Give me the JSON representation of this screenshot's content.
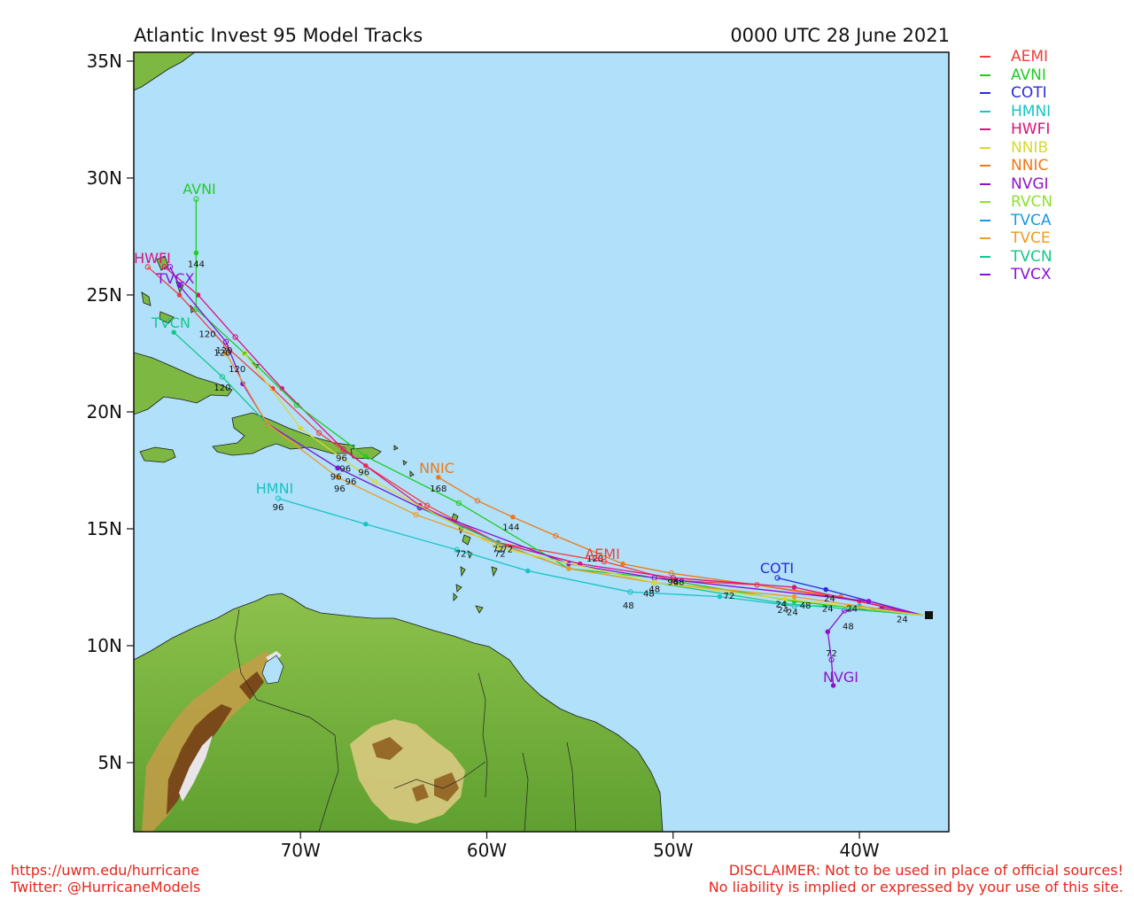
{
  "header": {
    "title": "Atlantic Invest 95 Model Tracks",
    "datetime": "0000 UTC 28 June 2021"
  },
  "axes": {
    "y_ticks": [
      "35N",
      "30N",
      "25N",
      "20N",
      "15N",
      "10N",
      "5N"
    ],
    "x_ticks": [
      "70W",
      "60W",
      "50W",
      "40W"
    ]
  },
  "legend": [
    {
      "label": "AEMI",
      "color": "#f23c3c"
    },
    {
      "label": "AVNI",
      "color": "#22cc22"
    },
    {
      "label": "COTI",
      "color": "#2a2ae0"
    },
    {
      "label": "HMNI",
      "color": "#18c4c4"
    },
    {
      "label": "HWFI",
      "color": "#e0107a"
    },
    {
      "label": "NNIB",
      "color": "#d8d834"
    },
    {
      "label": "NNIC",
      "color": "#f07818"
    },
    {
      "label": "NVGI",
      "color": "#9012c8"
    },
    {
      "label": "RVCN",
      "color": "#8ee030"
    },
    {
      "label": "TVCA",
      "color": "#1a9ae0"
    },
    {
      "label": "TVCE",
      "color": "#f09a20"
    },
    {
      "label": "TVCN",
      "color": "#14c88a"
    },
    {
      "label": "TVCX",
      "color": "#8a10d8"
    }
  ],
  "track_labels": [
    {
      "model": "AVNI",
      "text": "AVNI"
    },
    {
      "model": "HWFI",
      "text": "HWFI"
    },
    {
      "model": "TVCX",
      "text": "TVCX"
    },
    {
      "model": "TVCN",
      "text": "TVCN"
    },
    {
      "model": "NNIC",
      "text": "NNIC"
    },
    {
      "model": "HMNI",
      "text": "HMNI"
    },
    {
      "model": "AEMI",
      "text": "AEMI"
    },
    {
      "model": "COTI",
      "text": "COTI"
    },
    {
      "model": "NVGI",
      "text": "NVGI"
    }
  ],
  "tracks": {
    "HMNI": [
      [
        -36.6,
        11.3
      ],
      [
        -40,
        11.7
      ],
      [
        -43.5,
        11.7
      ],
      [
        -47.5,
        12.1
      ],
      [
        -52.3,
        12.3
      ],
      [
        -57.8,
        13.2
      ],
      [
        -61.6,
        14.1
      ],
      [
        -66.5,
        15.2
      ],
      [
        -71.2,
        16.3
      ]
    ],
    "NVGI": [
      [
        -36.6,
        11.3
      ],
      [
        -38.8,
        11.6
      ],
      [
        -40.8,
        11.5
      ],
      [
        -41.7,
        10.6
      ],
      [
        -41.5,
        9.4
      ],
      [
        -41.4,
        8.3
      ]
    ],
    "COTI": [
      [
        -36.6,
        11.3
      ],
      [
        -41.8,
        12.4
      ],
      [
        -44.4,
        12.9
      ]
    ],
    "AEMI": [
      [
        -36.6,
        11.3
      ],
      [
        -40,
        11.9
      ],
      [
        -45.5,
        12.6
      ],
      [
        -50,
        12.8
      ],
      [
        -53.7,
        13.6
      ],
      [
        -59.4,
        14.4
      ],
      [
        -63.2,
        16
      ],
      [
        -66.5,
        17.7
      ],
      [
        -69,
        19.1
      ],
      [
        -71.5,
        21
      ],
      [
        -74,
        22.8
      ],
      [
        -76.5,
        25
      ],
      [
        -78.2,
        26.2
      ]
    ],
    "NNIC": [
      [
        -36.6,
        11.3
      ],
      [
        -41,
        12.1
      ],
      [
        -50.1,
        13.1
      ],
      [
        -52.7,
        13.5
      ],
      [
        -56.3,
        14.7
      ],
      [
        -58.6,
        15.5
      ],
      [
        -60.5,
        16.2
      ],
      [
        -62.6,
        17.2
      ]
    ],
    "HWFI": [
      [
        -36.6,
        11.3
      ],
      [
        -43.5,
        12.5
      ],
      [
        -50,
        12.9
      ],
      [
        -55,
        13.5
      ],
      [
        -59.4,
        14.4
      ],
      [
        -63.6,
        16
      ],
      [
        -67.7,
        18.4
      ],
      [
        -71,
        21
      ],
      [
        -73.5,
        23.2
      ],
      [
        -75.5,
        25
      ],
      [
        -77.3,
        26.2
      ]
    ],
    "AVNI": [
      [
        -36.6,
        11.3
      ],
      [
        -43.5,
        11.9
      ],
      [
        -51,
        12.9
      ],
      [
        -55.6,
        13.3
      ],
      [
        -61.5,
        16.1
      ],
      [
        -66.5,
        18.1
      ],
      [
        -70.2,
        20.3
      ],
      [
        -73,
        22.5
      ],
      [
        -75.6,
        24.4
      ],
      [
        -75.6,
        26.8
      ],
      [
        -75.6,
        29.1
      ]
    ],
    "TVCN": [
      [
        -36.6,
        11.3
      ],
      [
        -44,
        11.8
      ],
      [
        -51,
        12.7
      ],
      [
        -55.6,
        13.3
      ],
      [
        -59.4,
        14.4
      ],
      [
        -63.6,
        15.9
      ],
      [
        -68,
        17.6
      ],
      [
        -71.8,
        19.5
      ],
      [
        -74.2,
        21.5
      ],
      [
        -76.8,
        23.4
      ]
    ],
    "TVCX": [
      [
        -36.6,
        11.3
      ],
      [
        -39.5,
        11.9
      ],
      [
        -51,
        12.9
      ],
      [
        -55.6,
        13.5
      ],
      [
        -63.6,
        15.9
      ],
      [
        -68,
        17.6
      ],
      [
        -71.8,
        19.5
      ],
      [
        -73.1,
        21.2
      ],
      [
        -74,
        23
      ],
      [
        -76.5,
        25.4
      ],
      [
        -77,
        26.2
      ]
    ],
    "TVCE": [
      [
        -36.6,
        11.3
      ],
      [
        -43.5,
        12.1
      ],
      [
        -51,
        12.7
      ],
      [
        -55.6,
        13.3
      ],
      [
        -63.8,
        15.6
      ],
      [
        -68,
        17.2
      ],
      [
        -71.8,
        19.5
      ],
      [
        -74,
        22.5
      ]
    ],
    "NNIB": [
      [
        -36.6,
        11.3
      ],
      [
        -44,
        12
      ],
      [
        -51,
        12.7
      ],
      [
        -59.4,
        14.2
      ],
      [
        -66,
        17
      ],
      [
        -70,
        19.3
      ],
      [
        -73,
        22.5
      ]
    ]
  },
  "hour_labels": [
    {
      "text": "24",
      "lon": -37.7,
      "lat": 11.0
    },
    {
      "text": "24",
      "lon": -40.4,
      "lat": 11.45
    },
    {
      "text": "24",
      "lon": -41.7,
      "lat": 11.45
    },
    {
      "text": "24",
      "lon": -44.1,
      "lat": 11.4
    },
    {
      "text": "24",
      "lon": -44.2,
      "lat": 11.65
    },
    {
      "text": "24",
      "lon": -43.6,
      "lat": 11.3
    },
    {
      "text": "24",
      "lon": -41.6,
      "lat": 11.9
    },
    {
      "text": "48",
      "lon": -42.9,
      "lat": 11.6
    },
    {
      "text": "48",
      "lon": -40.6,
      "lat": 10.7
    },
    {
      "text": "48",
      "lon": -52.4,
      "lat": 11.6
    },
    {
      "text": "48",
      "lon": -51.3,
      "lat": 12.1
    },
    {
      "text": "48",
      "lon": -51.0,
      "lat": 12.3
    },
    {
      "text": "48",
      "lon": -49.7,
      "lat": 12.6
    },
    {
      "text": "72",
      "lon": -47.0,
      "lat": 12.0
    },
    {
      "text": "72",
      "lon": -61.4,
      "lat": 13.8
    },
    {
      "text": "72",
      "lon": -59.4,
      "lat": 14.0
    },
    {
      "text": "72",
      "lon": -58.9,
      "lat": 14.0
    },
    {
      "text": "72",
      "lon": -59.3,
      "lat": 13.8
    },
    {
      "text": "72",
      "lon": -41.5,
      "lat": 9.55
    },
    {
      "text": "96",
      "lon": -50.0,
      "lat": 12.6
    },
    {
      "text": "96",
      "lon": -71.2,
      "lat": 15.8
    },
    {
      "text": "96",
      "lon": -67.9,
      "lat": 16.6
    },
    {
      "text": "96",
      "lon": -67.3,
      "lat": 16.9
    },
    {
      "text": "96",
      "lon": -66.6,
      "lat": 17.3
    },
    {
      "text": "96",
      "lon": -67.6,
      "lat": 17.45
    },
    {
      "text": "96",
      "lon": -68.1,
      "lat": 17.1
    },
    {
      "text": "96",
      "lon": -67.8,
      "lat": 17.9
    },
    {
      "text": "120",
      "lon": -54.2,
      "lat": 13.6
    },
    {
      "text": "120",
      "lon": -74.2,
      "lat": 20.9
    },
    {
      "text": "120",
      "lon": -74.2,
      "lat": 22.4
    },
    {
      "text": "120",
      "lon": -73.4,
      "lat": 21.7
    },
    {
      "text": "120",
      "lon": -74.1,
      "lat": 22.5
    },
    {
      "text": "120",
      "lon": -75.0,
      "lat": 23.2
    },
    {
      "text": "144",
      "lon": -58.7,
      "lat": 14.95
    },
    {
      "text": "144",
      "lon": -75.6,
      "lat": 26.2
    },
    {
      "text": "168",
      "lon": -62.6,
      "lat": 16.6
    }
  ],
  "credits": {
    "left_line1": "https://uwm.edu/hurricane",
    "left_line2": "Twitter: @HurricaneModels",
    "right_line1": "DISCLAIMER: Not to be used in place of official sources!",
    "right_line2": "No liability is implied or expressed by your use of this site."
  },
  "colors": {
    "ocean": "#b0e0fa",
    "land_low": "#7db842",
    "land_mid": "#a4cc55",
    "land_high": "#c4a050",
    "land_peak": "#6e3a12"
  }
}
